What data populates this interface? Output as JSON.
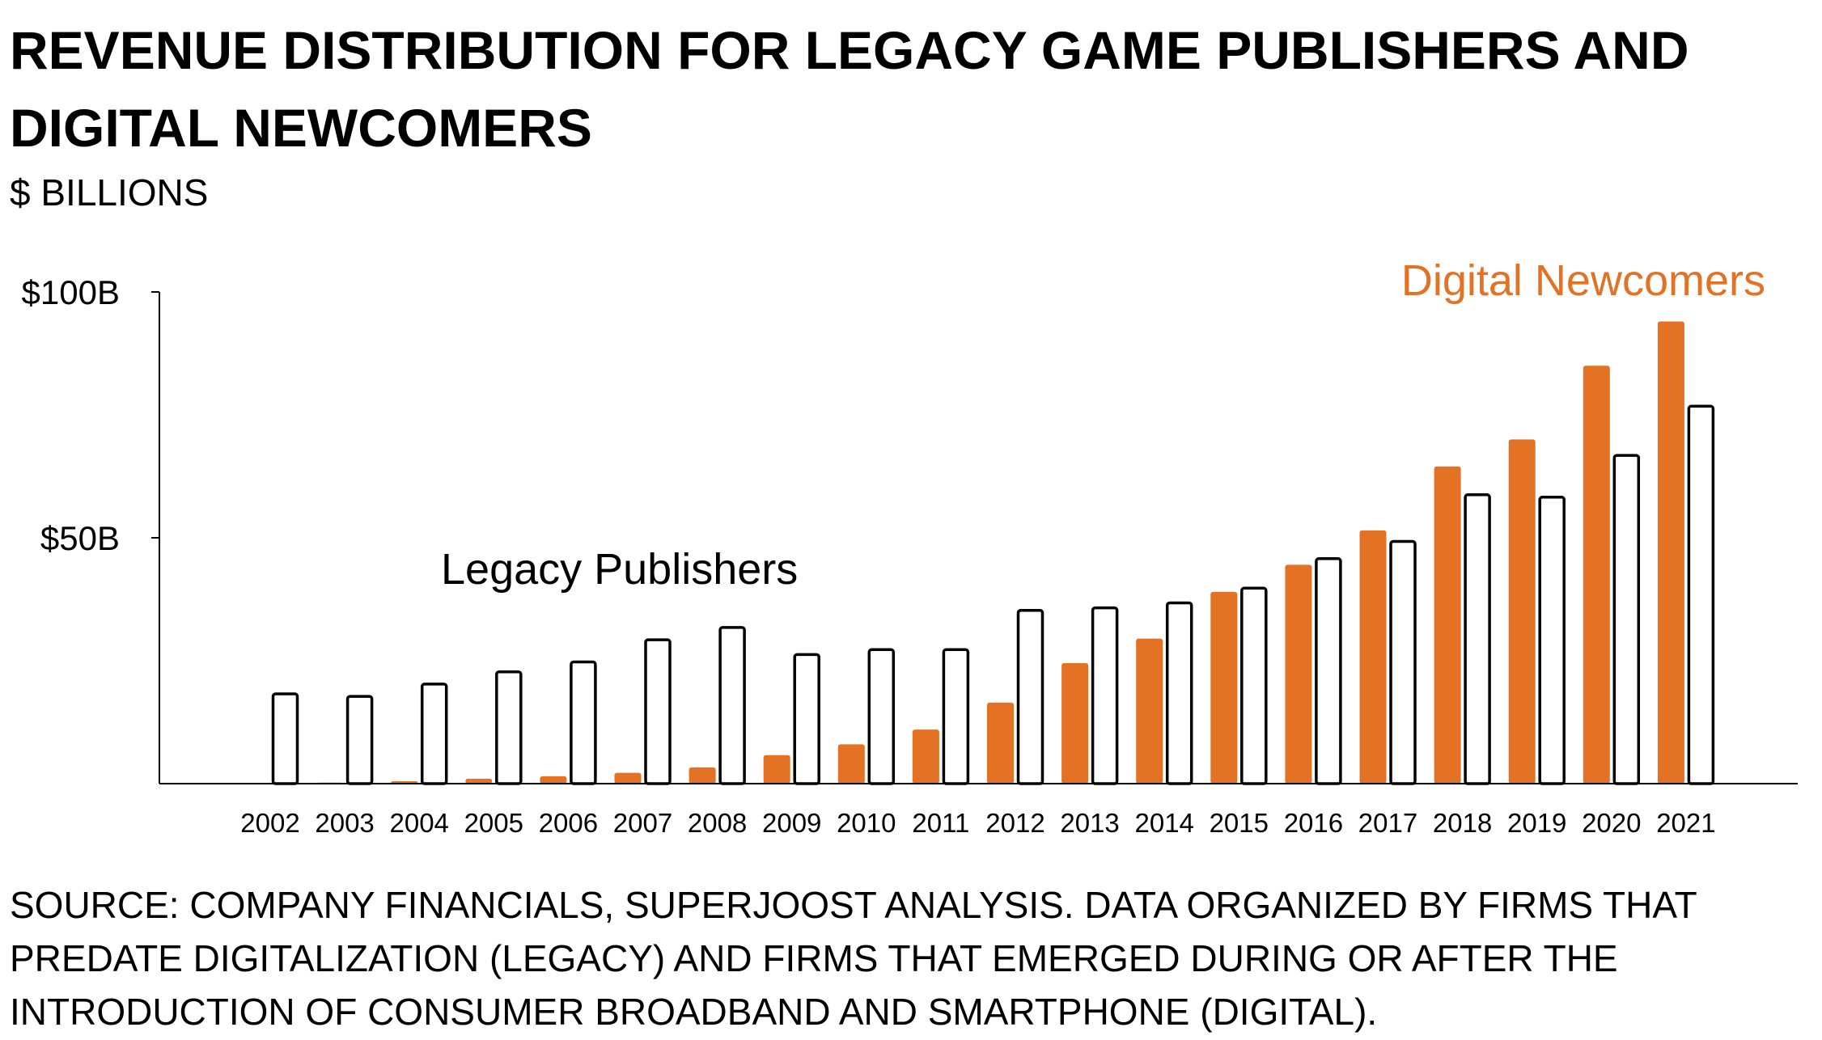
{
  "title": "REVENUE DISTRIBUTION FOR LEGACY GAME PUBLISHERS AND DIGITAL NEWCOMERS",
  "subtitle": "$ BILLIONS",
  "footnote": "SOURCE: COMPANY FINANCIALS, SUPERJOOST ANALYSIS. DATA ORGANIZED BY FIRMS THAT PREDATE DIGITALIZATION (LEGACY) AND FIRMS THAT EMERGED DURING OR AFTER THE INTRODUCTION OF CONSUMER BROADBAND AND SMARTPHONE (DIGITAL).",
  "colors": {
    "digital": "#E37224",
    "legacy_fill": "#ffffff",
    "legacy_stroke": "#000000",
    "axis": "#000000"
  },
  "chart_data": {
    "type": "bar",
    "title": "REVENUE DISTRIBUTION FOR LEGACY GAME PUBLISHERS AND DIGITAL NEWCOMERS",
    "ylabel": "$ BILLIONS",
    "xlabel": "",
    "ylim": [
      0,
      100
    ],
    "y_ticks": [
      {
        "value": 100,
        "label": "$100B"
      },
      {
        "value": 50,
        "label": "$50B"
      }
    ],
    "grid": false,
    "legend": "inline labels above bars",
    "categories": [
      "2002",
      "2003",
      "2004",
      "2005",
      "2006",
      "2007",
      "2008",
      "2009",
      "2010",
      "2011",
      "2012",
      "2013",
      "2014",
      "2015",
      "2016",
      "2017",
      "2018",
      "2019",
      "2020",
      "2021"
    ],
    "series": [
      {
        "name": "Digital Newcomers",
        "color": "#E37224",
        "values": [
          0,
          0.2,
          0.5,
          1,
          1.5,
          2.2,
          3.3,
          5.8,
          8,
          11,
          16.5,
          24.5,
          29.5,
          39,
          44.5,
          51.5,
          64.5,
          70,
          85,
          94
        ]
      },
      {
        "name": "Legacy Publishers",
        "color": "#ffffff",
        "values": [
          18.5,
          18,
          20.5,
          23,
          25,
          29.5,
          32,
          26.5,
          27.5,
          27.5,
          35.5,
          36,
          37,
          40,
          46,
          49.5,
          59,
          58.5,
          67,
          77
        ]
      }
    ]
  }
}
